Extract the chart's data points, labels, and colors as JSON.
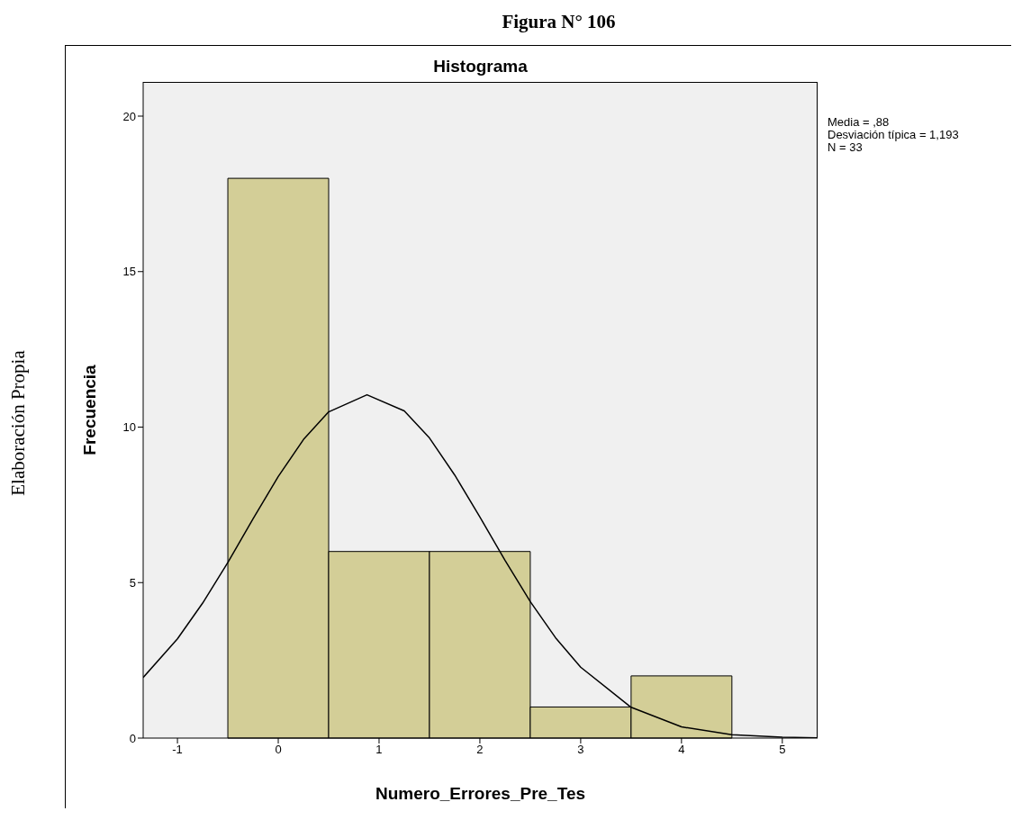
{
  "chart_data": {
    "type": "histogram",
    "title": "Figura N° 106",
    "subtitle": "Histograma",
    "xlabel": "Numero_Errores_Pre_Tes",
    "ylabel": "Frecuencia",
    "series": [
      {
        "bins": [
          -0.5,
          0.5,
          1.5,
          2.5,
          3.5,
          4.5
        ],
        "values": [
          18,
          6,
          6,
          1,
          2
        ],
        "color": "#d3ce97"
      },
      {
        "type": "line",
        "x": [
          -1.34,
          -1,
          -0.75,
          -0.5,
          -0.25,
          0,
          0.25,
          0.5,
          0.88,
          1.25,
          1.5,
          1.75,
          2,
          2.25,
          2.5,
          2.75,
          3,
          3.5,
          4,
          4.5,
          5,
          5.35
        ],
        "values": [
          1.95,
          3.19,
          4.34,
          5.65,
          7.05,
          8.41,
          9.6,
          10.49,
          11.04,
          10.52,
          9.65,
          8.46,
          7.11,
          5.71,
          4.39,
          3.23,
          2.28,
          0.99,
          0.36,
          0.11,
          0.03,
          0.01
        ],
        "color": "#000000"
      }
    ],
    "xlim": [
      -1.34,
      5.35
    ],
    "xticks": [
      -1,
      0,
      1,
      2,
      3,
      4,
      5
    ],
    "ylim": [
      0,
      21.1
    ],
    "yticks": [
      0,
      5,
      10,
      15,
      20
    ],
    "grid": false,
    "marker": "none",
    "annotations": [
      "Media = ,88",
      "Desviación típica = 1,193",
      "N = 33",
      "Elaboración Propia"
    ]
  }
}
